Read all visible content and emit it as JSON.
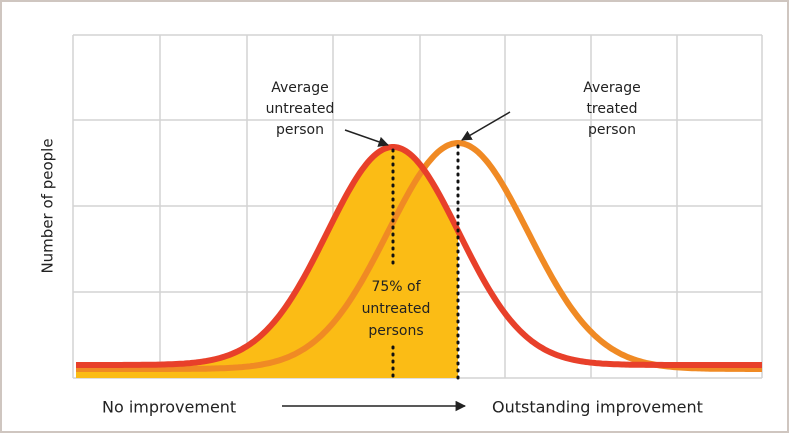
{
  "y_axis_label": "Number of people",
  "x_axis": {
    "left_label": "No improvement",
    "right_label": "Outstanding improvement"
  },
  "annotations": {
    "untreated": [
      "Average",
      "untreated",
      "person"
    ],
    "treated": [
      "Average",
      "treated",
      "person"
    ],
    "share": [
      "75% of",
      "untreated",
      "persons"
    ]
  }
}
